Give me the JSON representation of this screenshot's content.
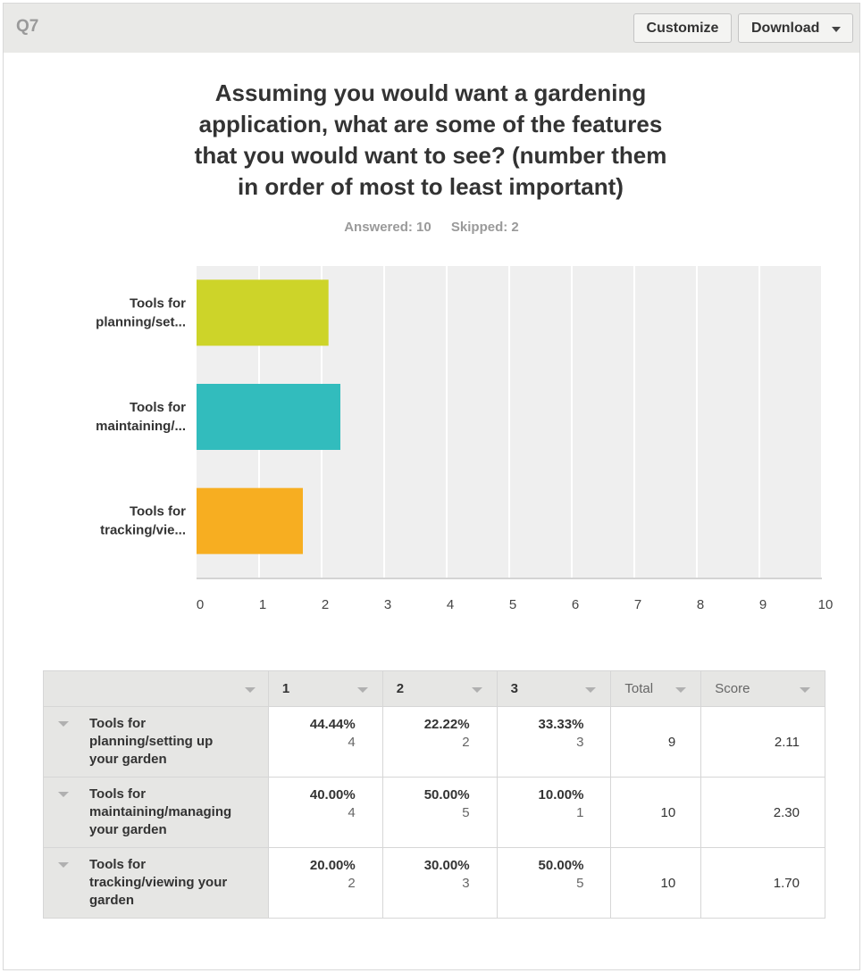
{
  "header": {
    "question_label": "Q7",
    "customize_label": "Customize",
    "download_label": "Download"
  },
  "question": {
    "title_lines": [
      "Assuming you would want a gardening",
      "application, what are some of the features",
      "that you would want to see? (number them",
      "in order of most to least important)"
    ],
    "answered": "Answered: 10",
    "skipped": "Skipped: 2"
  },
  "chart_data": {
    "type": "bar",
    "orientation": "horizontal",
    "categories": [
      "Tools for planning/set...",
      "Tools for maintaining/...",
      "Tools for tracking/vie..."
    ],
    "category_lines": [
      [
        "Tools for",
        "planning/set..."
      ],
      [
        "Tools for",
        "maintaining/..."
      ],
      [
        "Tools for",
        "tracking/vie..."
      ]
    ],
    "values": [
      2.11,
      2.3,
      1.7
    ],
    "colors": [
      "#cdd429",
      "#32bcbd",
      "#f7ae21"
    ],
    "xlim": [
      0,
      10
    ],
    "xticks": [
      "0",
      "1",
      "2",
      "3",
      "4",
      "5",
      "6",
      "7",
      "8",
      "9",
      "10"
    ],
    "grid": true,
    "background": "#efefef"
  },
  "table": {
    "headers": [
      "",
      "1",
      "2",
      "3",
      "Total",
      "Score"
    ],
    "rows": [
      {
        "label_lines": [
          "Tools for",
          "planning/setting up",
          "your garden"
        ],
        "cells": [
          {
            "pct": "44.44%",
            "count": "4"
          },
          {
            "pct": "22.22%",
            "count": "2"
          },
          {
            "pct": "33.33%",
            "count": "3"
          }
        ],
        "total": "9",
        "score": "2.11"
      },
      {
        "label_lines": [
          "Tools for",
          "maintaining/managing",
          "your garden"
        ],
        "cells": [
          {
            "pct": "40.00%",
            "count": "4"
          },
          {
            "pct": "50.00%",
            "count": "5"
          },
          {
            "pct": "10.00%",
            "count": "1"
          }
        ],
        "total": "10",
        "score": "2.30"
      },
      {
        "label_lines": [
          "Tools for",
          "tracking/viewing your",
          "garden"
        ],
        "cells": [
          {
            "pct": "20.00%",
            "count": "2"
          },
          {
            "pct": "30.00%",
            "count": "3"
          },
          {
            "pct": "50.00%",
            "count": "5"
          }
        ],
        "total": "10",
        "score": "1.70"
      }
    ]
  }
}
